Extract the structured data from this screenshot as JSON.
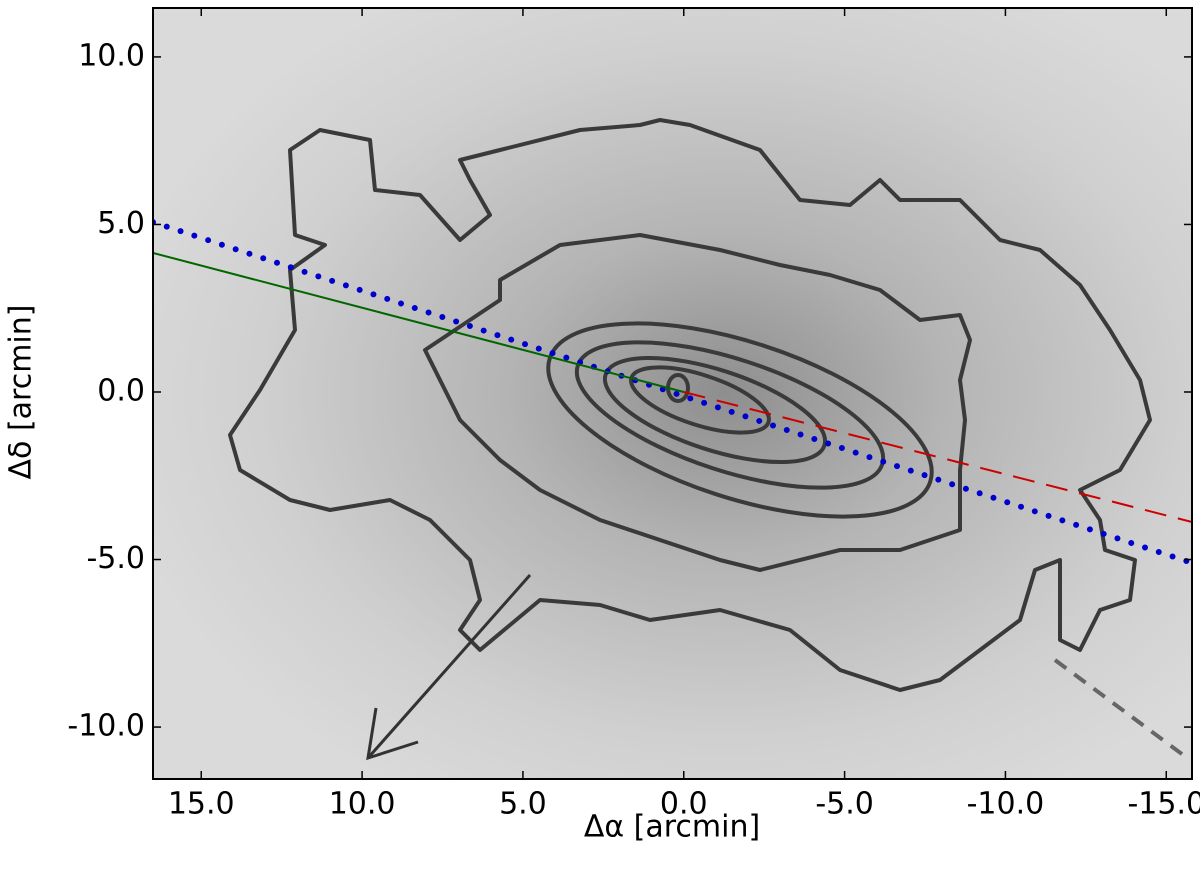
{
  "chart_data": {
    "type": "line",
    "x_label": "Δα [arcmin]",
    "y_label": "Δδ [arcmin]",
    "xlim": [
      16.5,
      -15.8
    ],
    "ylim": [
      -11.55,
      11.46
    ],
    "xticks": [
      {
        "value": 15,
        "label": "15.0"
      },
      {
        "value": 10,
        "label": "10.0"
      },
      {
        "value": 5,
        "label": "5.0"
      },
      {
        "value": 0,
        "label": "0.0"
      },
      {
        "value": -5,
        "label": "-5.0"
      },
      {
        "value": -10,
        "label": "-10.0"
      },
      {
        "value": -15,
        "label": "-15.0"
      }
    ],
    "yticks": [
      {
        "value": 10,
        "label": "10.0"
      },
      {
        "value": 5,
        "label": "5.0"
      },
      {
        "value": 0,
        "label": "0.0"
      },
      {
        "value": -5,
        "label": "-5.0"
      },
      {
        "value": -10,
        "label": "-10.0"
      }
    ],
    "series": [
      {
        "color": "#0000cc",
        "style": "dotted",
        "x": [
          16.5,
          -15.8
        ],
        "values": [
          5.07,
          -5.1
        ]
      },
      {
        "color": "#006600",
        "style": "solid",
        "x": [
          16.5,
          0
        ],
        "values": [
          4.15,
          0
        ]
      },
      {
        "color": "#cc0000",
        "style": "dashed",
        "x": [
          0,
          -15.8
        ],
        "values": [
          0,
          -3.88
        ]
      }
    ]
  }
}
